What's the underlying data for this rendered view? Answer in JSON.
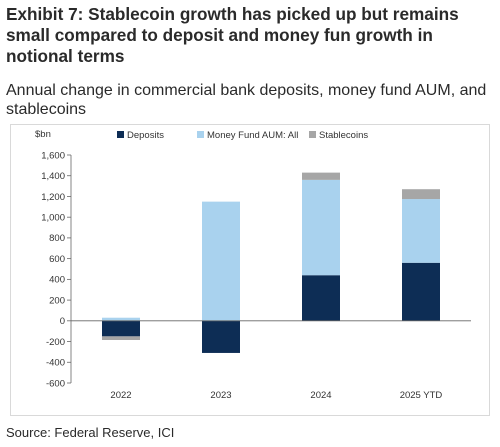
{
  "title": "Exhibit 7: Stablecoin growth has picked up but remains small compared to deposit and money fun growth in notional terms",
  "subtitle": "Annual change in commercial bank deposits, money fund AUM, and stablecoins",
  "source": "Source: Federal Reserve, ICI",
  "colors": {
    "deposits": "#0d2d55",
    "money_fund": "#a9d2ee",
    "stablecoins": "#a6a6a6"
  },
  "chart_data": {
    "type": "bar",
    "stacked": true,
    "unit_label": "$bn",
    "categories": [
      "2022",
      "2023",
      "2024",
      "2025 YTD"
    ],
    "series": [
      {
        "name": "Deposits",
        "values": [
          -150,
          -310,
          440,
          560
        ]
      },
      {
        "name": "Money Fund AUM: All",
        "values": [
          30,
          1150,
          920,
          615
        ]
      },
      {
        "name": "Stablecoins",
        "values": [
          -35,
          0,
          70,
          95
        ]
      }
    ],
    "ylim": [
      -600,
      1600
    ],
    "yticks": [
      "1,600",
      "1,400",
      "1,200",
      "1,000",
      "800",
      "600",
      "400",
      "200",
      "0",
      "-200",
      "-400",
      "-600"
    ],
    "ytick_values": [
      1600,
      1400,
      1200,
      1000,
      800,
      600,
      400,
      200,
      0,
      -200,
      -400,
      -600
    ],
    "legend_position": "top",
    "grid": false
  }
}
